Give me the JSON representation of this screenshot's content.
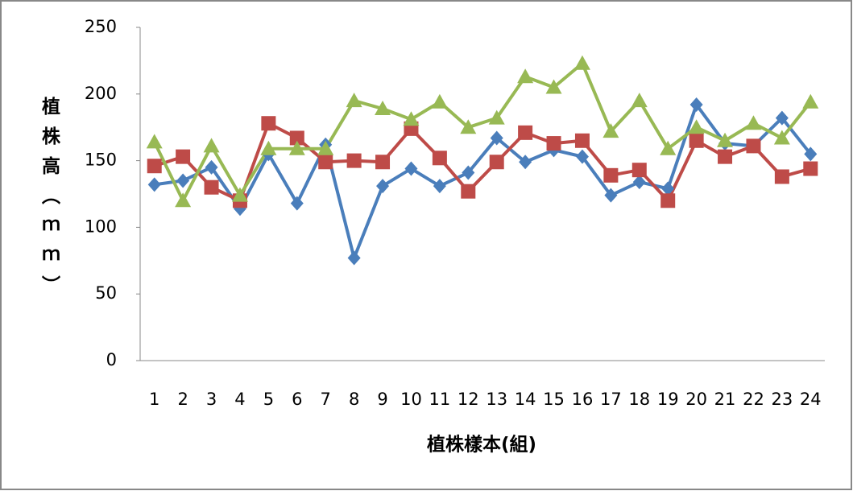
{
  "chart_data": {
    "type": "line",
    "y_label": "植株高（ｍｍ）",
    "x_label": "植株樣本(組)",
    "categories": [
      "1",
      "2",
      "3",
      "4",
      "5",
      "6",
      "7",
      "8",
      "9",
      "10",
      "11",
      "12",
      "13",
      "14",
      "15",
      "16",
      "17",
      "18",
      "19",
      "20",
      "21",
      "22",
      "23",
      "24"
    ],
    "series": [
      {
        "color": "#4a7ebb",
        "marker": "diamond",
        "values": [
          132,
          135,
          145,
          114,
          155,
          118,
          162,
          77,
          131,
          144,
          131,
          141,
          167,
          149,
          158,
          153,
          124,
          134,
          129,
          192,
          163,
          161,
          182,
          155
        ]
      },
      {
        "color": "#be4b48",
        "marker": "square",
        "values": [
          146,
          153,
          130,
          120,
          178,
          167,
          149,
          150,
          149,
          174,
          152,
          127,
          149,
          171,
          163,
          165,
          139,
          143,
          120,
          165,
          153,
          161,
          138,
          144
        ]
      },
      {
        "color": "#98b954",
        "marker": "triangle",
        "values": [
          164,
          120,
          161,
          124,
          159,
          159,
          159,
          195,
          189,
          181,
          194,
          175,
          182,
          213,
          205,
          223,
          172,
          195,
          159,
          175,
          165,
          178,
          167,
          194
        ]
      }
    ],
    "ylim": [
      0,
      250
    ],
    "yticks": [
      0,
      50,
      100,
      150,
      200,
      250
    ],
    "grid": false
  }
}
